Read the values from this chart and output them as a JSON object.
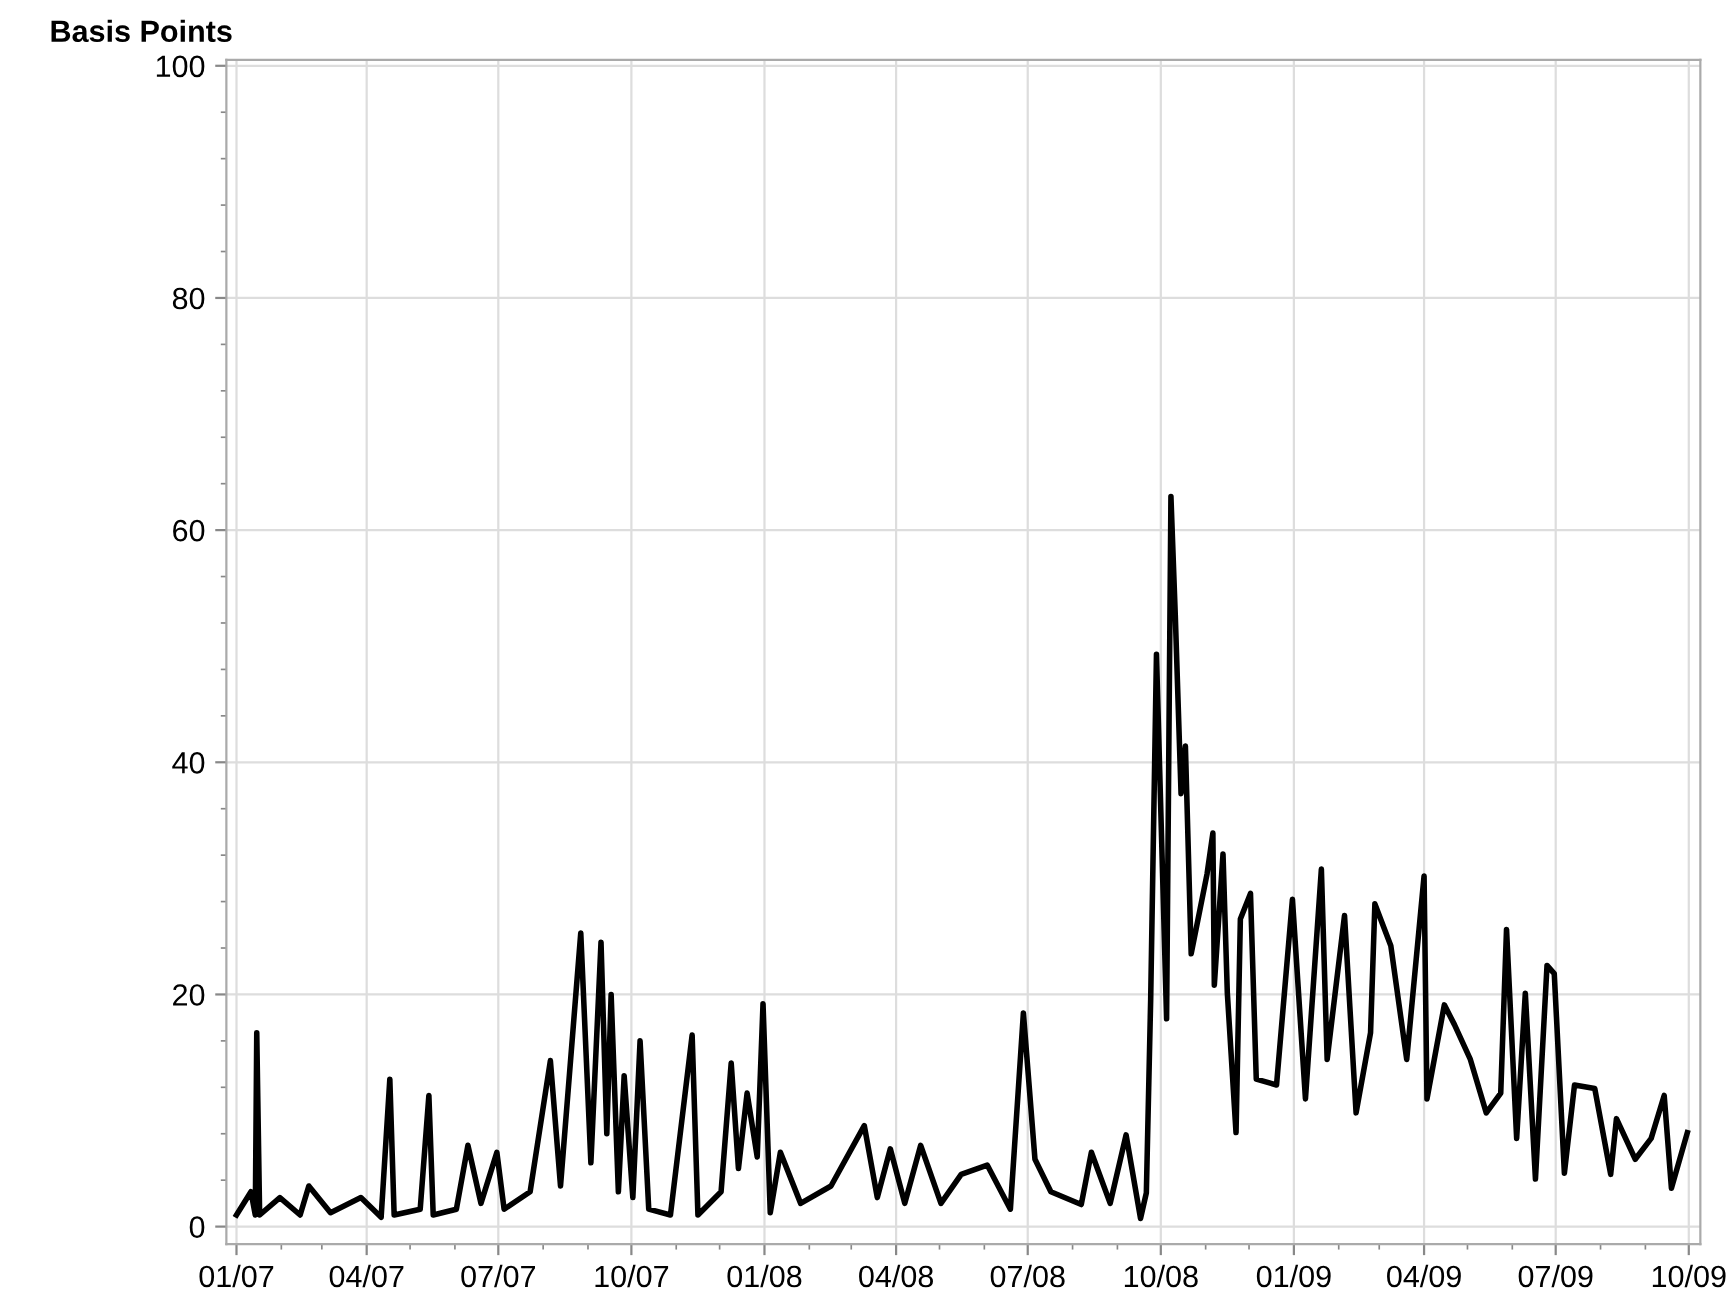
{
  "chart_data": {
    "type": "line",
    "ylabel": "Basis Points",
    "color": "#000000",
    "x": [
      "2007-01-01",
      "2007-01-11",
      "2007-01-14",
      "2007-01-15",
      "2007-01-17",
      "2007-01-31",
      "2007-02-14",
      "2007-02-20",
      "2007-03-07",
      "2007-03-28",
      "2007-04-11",
      "2007-04-17",
      "2007-04-20",
      "2007-05-08",
      "2007-05-14",
      "2007-05-17",
      "2007-06-02",
      "2007-06-10",
      "2007-06-19",
      "2007-06-30",
      "2007-07-05",
      "2007-07-23",
      "2007-08-06",
      "2007-08-13",
      "2007-08-27",
      "2007-09-03",
      "2007-09-10",
      "2007-09-14",
      "2007-09-17",
      "2007-09-22",
      "2007-09-26",
      "2007-10-02",
      "2007-10-07",
      "2007-10-13",
      "2007-10-28",
      "2007-11-12",
      "2007-11-16",
      "2007-12-02",
      "2007-12-09",
      "2007-12-14",
      "2007-12-20",
      "2007-12-27",
      "2007-12-31",
      "2008-01-05",
      "2008-01-12",
      "2008-01-26",
      "2008-02-16",
      "2008-03-10",
      "2008-03-19",
      "2008-03-28",
      "2008-04-07",
      "2008-04-18",
      "2008-05-02",
      "2008-05-16",
      "2008-06-03",
      "2008-06-19",
      "2008-06-28",
      "2008-07-06",
      "2008-07-17",
      "2008-08-07",
      "2008-08-14",
      "2008-08-27",
      "2008-09-07",
      "2008-09-17",
      "2008-09-21",
      "2008-09-24",
      "2008-09-28",
      "2008-10-05",
      "2008-10-08",
      "2008-10-11",
      "2008-10-15",
      "2008-10-18",
      "2008-10-22",
      "2008-11-02",
      "2008-11-06",
      "2008-11-07",
      "2008-11-13",
      "2008-11-16",
      "2008-11-22",
      "2008-11-25",
      "2008-12-02",
      "2008-12-06",
      "2008-12-20",
      "2008-12-31",
      "2009-01-09",
      "2009-01-20",
      "2009-01-24",
      "2009-02-05",
      "2009-02-13",
      "2009-02-23",
      "2009-02-26",
      "2009-03-09",
      "2009-03-20",
      "2009-04-01",
      "2009-04-03",
      "2009-04-15",
      "2009-04-22",
      "2009-05-03",
      "2009-05-14",
      "2009-05-24",
      "2009-05-28",
      "2009-06-04",
      "2009-06-10",
      "2009-06-17",
      "2009-06-25",
      "2009-06-30",
      "2009-07-07",
      "2009-07-14",
      "2009-07-28",
      "2009-08-08",
      "2009-08-12",
      "2009-08-25",
      "2009-09-05",
      "2009-09-14",
      "2009-09-19",
      "2009-09-30"
    ],
    "values": [
      1.0,
      3.0,
      1.0,
      16.7,
      1.0,
      2.5,
      1.0,
      3.5,
      1.2,
      2.5,
      0.8,
      12.7,
      1.0,
      1.5,
      11.3,
      1.0,
      1.5,
      7.0,
      2.0,
      6.4,
      1.5,
      3.0,
      14.3,
      3.5,
      25.3,
      5.5,
      24.5,
      8.0,
      20.0,
      3.0,
      13.0,
      2.5,
      16.0,
      1.5,
      1.0,
      16.5,
      1.0,
      3.0,
      14.1,
      5.0,
      11.5,
      6.0,
      19.2,
      1.2,
      6.4,
      2.0,
      3.5,
      8.7,
      2.5,
      6.7,
      2.0,
      7.0,
      2.0,
      4.5,
      5.3,
      1.5,
      18.4,
      5.8,
      3.0,
      1.9,
      6.4,
      2.0,
      7.9,
      0.7,
      2.9,
      19.6,
      49.3,
      17.9,
      62.9,
      52.7,
      37.3,
      41.4,
      23.5,
      30.4,
      33.9,
      20.8,
      32.1,
      20.1,
      8.1,
      26.5,
      28.7,
      12.7,
      12.2,
      28.2,
      11.0,
      30.8,
      14.4,
      26.8,
      9.8,
      16.7,
      27.8,
      24.2,
      14.4,
      30.2,
      11.0,
      19.1,
      17.4,
      14.4,
      9.8,
      11.5,
      25.6,
      7.6,
      20.1,
      4.1,
      22.5,
      21.8,
      4.6,
      12.2,
      11.9,
      4.5,
      9.3,
      5.8,
      7.6,
      11.3,
      3.3,
      8.1
    ],
    "xlim": [
      "2006-12-25",
      "2009-10-09"
    ],
    "xticks": [
      {
        "value": "2007-01-01",
        "label": "01/07"
      },
      {
        "value": "2007-04-01",
        "label": "04/07"
      },
      {
        "value": "2007-07-01",
        "label": "07/07"
      },
      {
        "value": "2007-10-01",
        "label": "10/07"
      },
      {
        "value": "2008-01-01",
        "label": "01/08"
      },
      {
        "value": "2008-04-01",
        "label": "04/08"
      },
      {
        "value": "2008-07-01",
        "label": "07/08"
      },
      {
        "value": "2008-10-01",
        "label": "10/08"
      },
      {
        "value": "2009-01-01",
        "label": "01/09"
      },
      {
        "value": "2009-04-01",
        "label": "04/09"
      },
      {
        "value": "2009-07-01",
        "label": "07/09"
      },
      {
        "value": "2009-10-01",
        "label": "10/09"
      }
    ],
    "ylim": [
      -1.5,
      100.5
    ],
    "yticks": [
      0,
      20,
      40,
      60,
      80,
      100
    ],
    "grid": true,
    "line_style": "solid",
    "marker": "none"
  }
}
